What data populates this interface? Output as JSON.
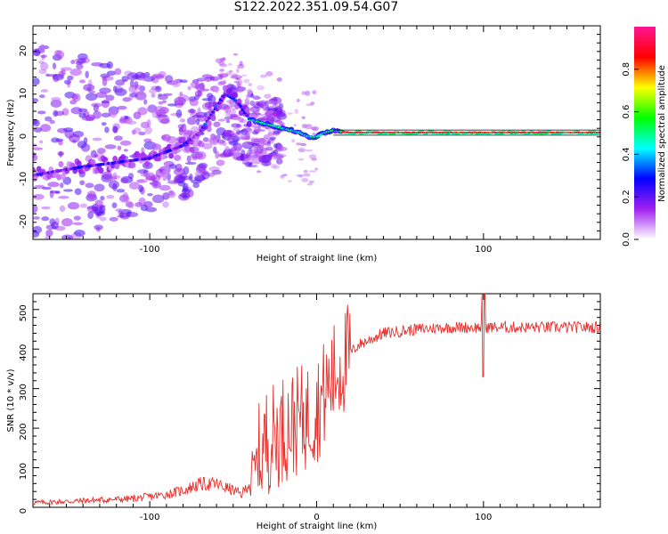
{
  "title": "S122.2022.351.09.54.G07",
  "chart_data": [
    {
      "type": "heatmap",
      "xlabel": "Height of straight line (km)",
      "ylabel": "Frequency (Hz)",
      "xlim": [
        -170,
        170
      ],
      "ylim": [
        -25,
        25
      ],
      "xticks": [
        -100,
        0,
        100
      ],
      "xtick_labels": [
        "-100",
        "",
        "100"
      ],
      "yticks": [
        -20,
        -10,
        0,
        10,
        20
      ],
      "ytick_labels": [
        "-20",
        "-10",
        "0",
        "10",
        "20"
      ],
      "description_of_ridge": {
        "x": [
          -170,
          -140,
          -120,
          -100,
          -80,
          -70,
          -60,
          -55,
          -50,
          -45,
          -40,
          -30,
          -20,
          -10,
          -5,
          0,
          5,
          10,
          20,
          60,
          100,
          140,
          170
        ],
        "y": [
          -10,
          -8,
          -7,
          -6,
          -3,
          0,
          6,
          9,
          8,
          6,
          3,
          2,
          1,
          0,
          -1,
          -1,
          0,
          0.5,
          0,
          0,
          0,
          0,
          0
        ]
      },
      "colorbar": {
        "label": "Normalized spectral amplitude",
        "ticks": [
          0.0,
          0.2,
          0.4,
          0.6,
          0.8
        ],
        "tick_labels": [
          "0.0",
          "0.2",
          "0.4",
          "0.6",
          "0.8"
        ],
        "range": [
          0,
          1
        ],
        "colormap": [
          "#ffffff",
          "#a020f0",
          "#0000ff",
          "#00ffff",
          "#00ff00",
          "#ffff00",
          "#ff0000",
          "#ff1493"
        ]
      }
    },
    {
      "type": "line",
      "xlabel": "Height of straight line (km)",
      "ylabel": "SNR (10 * v/v)",
      "xlim": [
        -170,
        170
      ],
      "ylim": [
        0,
        540
      ],
      "xticks": [
        -100,
        0,
        100
      ],
      "xtick_labels": [
        "-100",
        "0",
        "100"
      ],
      "yticks": [
        0,
        100,
        200,
        300,
        400,
        500
      ],
      "ytick_labels": [
        "0",
        "100",
        "200",
        "300",
        "400",
        "500"
      ],
      "color": "#e8302c",
      "envelope": {
        "x": [
          -170,
          -140,
          -110,
          -90,
          -80,
          -70,
          -60,
          -50,
          -45,
          -40,
          -35,
          -30,
          -25,
          -20,
          -15,
          -10,
          -5,
          0,
          5,
          10,
          15,
          20,
          25,
          30,
          40,
          50,
          60,
          80,
          100,
          120,
          140,
          170
        ],
        "y": [
          10,
          15,
          20,
          30,
          40,
          55,
          55,
          40,
          30,
          60,
          120,
          170,
          180,
          200,
          210,
          220,
          230,
          250,
          290,
          330,
          360,
          390,
          410,
          420,
          440,
          445,
          450,
          455,
          455,
          455,
          455,
          455
        ]
      }
    }
  ]
}
